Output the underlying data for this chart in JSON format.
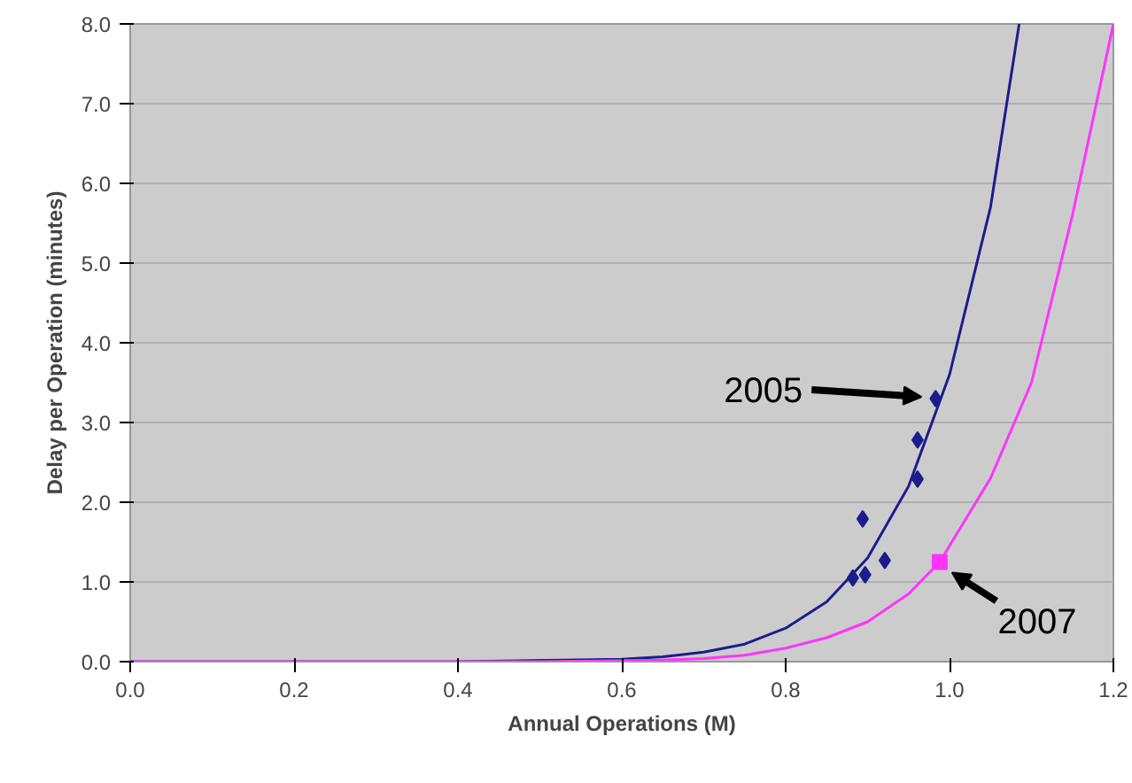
{
  "chart_data": {
    "type": "line",
    "xlabel": "Annual Operations (M)",
    "ylabel": "Delay per Operation (minutes)",
    "xlim": [
      0,
      1.2
    ],
    "ylim": [
      0,
      8
    ],
    "xticks": [
      {
        "value": 0,
        "label": "0.0"
      },
      {
        "value": 0.2,
        "label": "0.2"
      },
      {
        "value": 0.4,
        "label": "0.4"
      },
      {
        "value": 0.6,
        "label": "0.6"
      },
      {
        "value": 0.8,
        "label": "0.8"
      },
      {
        "value": 1.0,
        "label": "1.0"
      },
      {
        "value": 1.2,
        "label": "1.2"
      }
    ],
    "yticks": [
      {
        "value": 0,
        "label": "0.0"
      },
      {
        "value": 1,
        "label": "1.0"
      },
      {
        "value": 2,
        "label": "2.0"
      },
      {
        "value": 3,
        "label": "3.0"
      },
      {
        "value": 4,
        "label": "4.0"
      },
      {
        "value": 5,
        "label": "5.0"
      },
      {
        "value": 6,
        "label": "6.0"
      },
      {
        "value": 7,
        "label": "7.0"
      },
      {
        "value": 8,
        "label": "8.0"
      }
    ],
    "grid": "y",
    "series": [
      {
        "color": "#1c1c8c",
        "marker": "none",
        "x": [
          0,
          0.4,
          0.6,
          0.65,
          0.7,
          0.75,
          0.8,
          0.85,
          0.9,
          0.95,
          1.0,
          1.05,
          1.085
        ],
        "values": [
          0,
          0,
          0.03,
          0.06,
          0.12,
          0.22,
          0.42,
          0.75,
          1.3,
          2.2,
          3.6,
          5.7,
          8.0
        ]
      },
      {
        "type": "scatter",
        "color": "#1c1c8c",
        "marker": "diamond",
        "x": [
          0.983,
          0.961,
          0.961,
          0.894,
          0.921,
          0.882,
          0.897
        ],
        "values": [
          3.3,
          2.78,
          2.29,
          1.79,
          1.27,
          1.05,
          1.09
        ]
      },
      {
        "color": "#ff33ff",
        "marker": "none",
        "x": [
          0,
          0.5,
          0.65,
          0.7,
          0.75,
          0.8,
          0.85,
          0.9,
          0.95,
          0.988,
          1.05,
          1.1,
          1.15,
          1.2
        ],
        "values": [
          0,
          0,
          0.02,
          0.04,
          0.08,
          0.17,
          0.3,
          0.5,
          0.85,
          1.25,
          2.3,
          3.5,
          5.6,
          8.0
        ]
      },
      {
        "type": "scatter",
        "color": "#ff33ff",
        "marker": "square",
        "x": [
          0.988
        ],
        "values": [
          1.25
        ]
      }
    ],
    "annotations": [
      {
        "text": "2005",
        "x": 0.983,
        "y": 3.3
      },
      {
        "text": "2007",
        "x": 0.988,
        "y": 1.25
      }
    ]
  }
}
